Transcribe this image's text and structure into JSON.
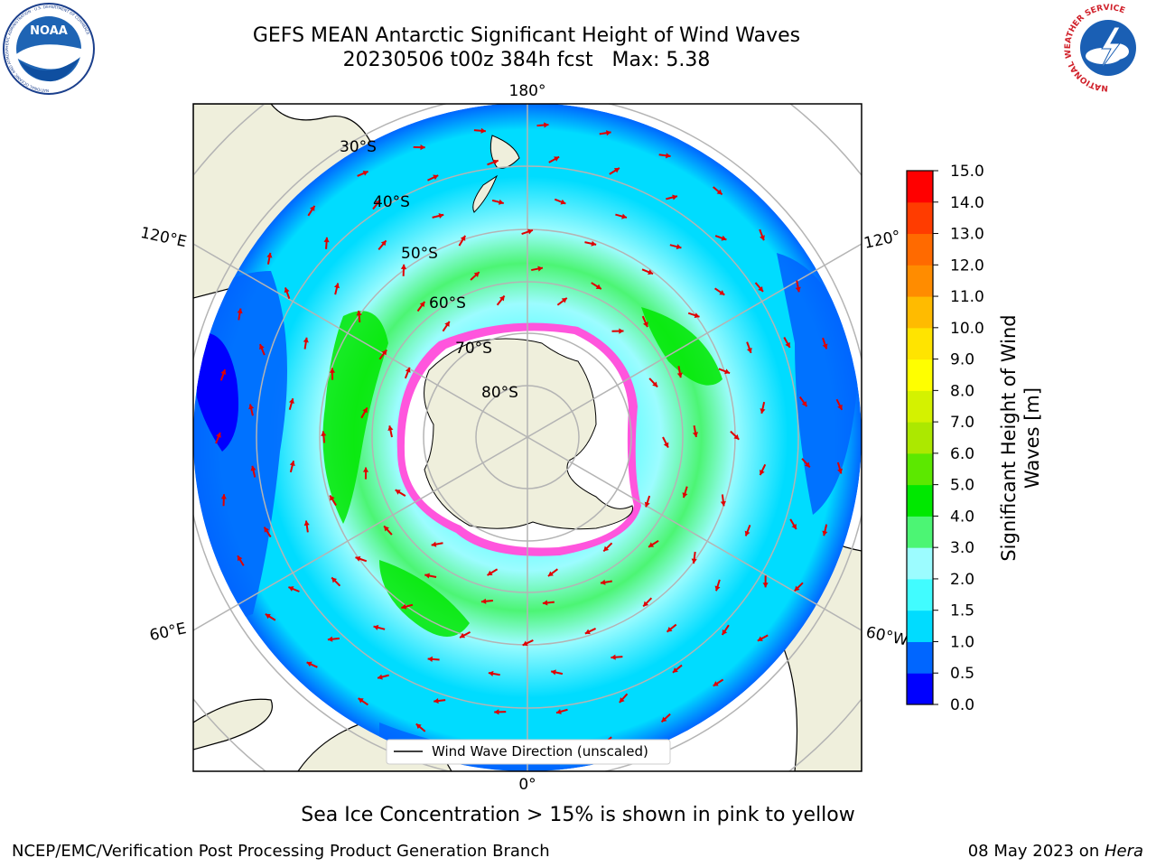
{
  "title": {
    "line1": "GEFS MEAN Antarctic Significant Height of Wind Waves",
    "line2": "20230506 t00z 384h fcst   Max: 5.38"
  },
  "logos": {
    "noaa_text": "NOAA",
    "noaa_ring": "NATIONAL OCEANIC AND ATMOSPHERIC ADMINISTRATION · U.S. DEPARTMENT OF COMMERCE",
    "nws_ring": "NATIONAL WEATHER SERVICE"
  },
  "map": {
    "longitude_labels": {
      "top": "180°",
      "bottom": "0°",
      "left_upper": "120°E",
      "left_lower": "60°E",
      "right_upper": "120°",
      "right_lower": "60°W"
    },
    "latitude_labels": [
      "30°S",
      "40°S",
      "50°S",
      "60°S",
      "70°S",
      "80°S"
    ],
    "legend_label": "Wind Wave Direction (unscaled)"
  },
  "colorbar": {
    "title_line1": "Significant Height of Wind",
    "title_line2": "Waves [m]",
    "ticks": [
      "0.0",
      "0.5",
      "1.0",
      "1.5",
      "2.0",
      "3.0",
      "4.0",
      "5.0",
      "6.0",
      "7.0",
      "8.0",
      "9.0",
      "10.0",
      "11.0",
      "12.0",
      "13.0",
      "14.0",
      "15.0"
    ],
    "colors": [
      "#0000ff",
      "#0066ff",
      "#00dcff",
      "#41fcff",
      "#9cfcff",
      "#4cf574",
      "#00e800",
      "#5ce800",
      "#ace800",
      "#d4f200",
      "#ffff00",
      "#ffe400",
      "#ffbb00",
      "#ff8c00",
      "#ff6a00",
      "#ff3c00",
      "#ff0000"
    ]
  },
  "footer": {
    "note": "Sea Ice Concentration > 15% is shown in pink to yellow",
    "left": "NCEP/EMC/Verification Post Processing Product Generation Branch",
    "right_date": "08 May 2023 on ",
    "right_host": "Hera"
  }
}
